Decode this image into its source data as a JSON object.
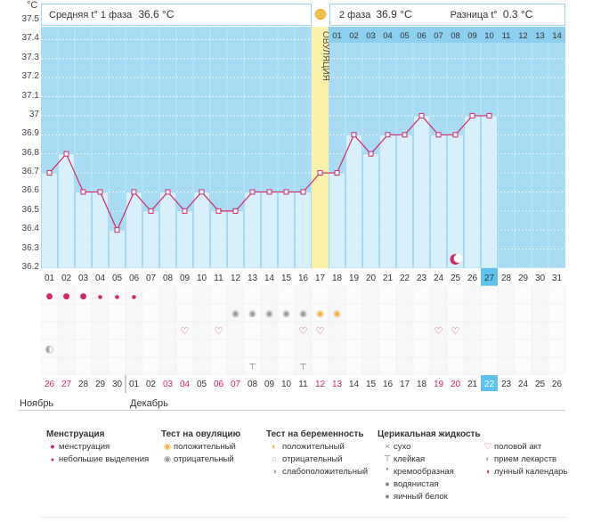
{
  "header": {
    "unit": "°C",
    "phase1_label": "Средняя t° 1 фаза",
    "phase1_value": "36.6 °C",
    "phase2_label": "2 фаза",
    "phase2_value": "36.9 °C",
    "diff_label": "Разница t°",
    "diff_value": "0.3 °C",
    "ovulation_label": "ОВУЛЯЦИЯ"
  },
  "colors": {
    "chart_bg": "#a8dcf4",
    "bar_fill": "#d8f0fb",
    "line": "#d2286a",
    "ovulation": "#fbf1a8",
    "grid": "#ffffff"
  },
  "chart_data": {
    "type": "line",
    "title": "",
    "ylabel": "°C",
    "ylim": [
      36.2,
      37.5
    ],
    "y_ticks": [
      "37.5",
      "37.4",
      "37.3",
      "37.2",
      "37.1",
      "37",
      "36.9",
      "36.8",
      "36.7",
      "36.6",
      "36.5",
      "36.4",
      "36.3",
      "36.2"
    ],
    "cycle_days": [
      "01",
      "02",
      "03",
      "04",
      "05",
      "06",
      "07",
      "08",
      "09",
      "10",
      "11",
      "12",
      "13",
      "14",
      "15",
      "16",
      "17",
      "18",
      "19",
      "20",
      "21",
      "22",
      "23",
      "24",
      "25",
      "26",
      "27",
      "28",
      "29",
      "30",
      "31"
    ],
    "post_ovulation_days": [
      "01",
      "02",
      "03",
      "04",
      "05",
      "06",
      "07",
      "08",
      "09",
      "10",
      "11",
      "12",
      "13",
      "14"
    ],
    "calendar_dates": [
      "26",
      "27",
      "28",
      "29",
      "30",
      "01",
      "02",
      "03",
      "04",
      "05",
      "06",
      "07",
      "08",
      "09",
      "10",
      "11",
      "12",
      "13",
      "14",
      "15",
      "16",
      "17",
      "18",
      "19",
      "20",
      "21",
      "22",
      "23",
      "24",
      "25",
      "26"
    ],
    "weekend_indices": [
      0,
      1,
      7,
      8,
      10,
      11,
      16,
      17,
      23,
      24
    ],
    "today_index": 26,
    "ovulation_day": "17",
    "values": [
      36.7,
      36.8,
      36.6,
      36.6,
      36.4,
      36.6,
      36.5,
      36.6,
      36.5,
      36.6,
      36.5,
      36.5,
      36.6,
      36.6,
      36.6,
      36.6,
      36.7,
      36.7,
      36.9,
      36.8,
      36.9,
      36.9,
      37.0,
      36.9,
      36.9,
      37.0,
      37.0
    ]
  },
  "months": {
    "november": "Ноябрь",
    "december": "Декабрь"
  },
  "legend": {
    "menstruation": {
      "title": "Менструация",
      "items": [
        "менструация",
        "небольшие выделения"
      ]
    },
    "ovulation_test": {
      "title": "Тест на овуляцию",
      "items": [
        "положительный",
        "отрицательный"
      ]
    },
    "pregnancy_test": {
      "title": "Тест на беременность",
      "items": [
        "положительный",
        "отрицательный",
        "слабоположительный"
      ]
    },
    "cervical": {
      "title": "Церикальная жидкость",
      "items": [
        "сухо",
        "клейкая",
        "кремообразная",
        "водянистая",
        "яичный белок"
      ]
    },
    "other": {
      "items": [
        "половой акт",
        "прием лекарств",
        "лунный календарь"
      ]
    }
  }
}
